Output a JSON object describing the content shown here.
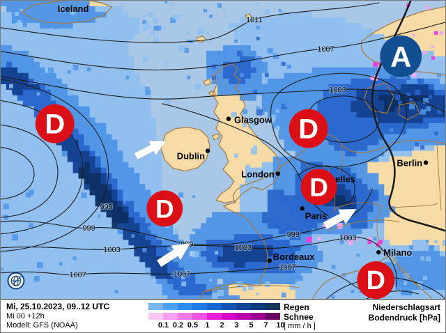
{
  "map": {
    "palette": {
      "sea": "#a9c8e8",
      "land": "#f6dba6",
      "coast": "#a87a3e",
      "isobar": "#1c1c1c",
      "precip_light": "#8ebff0",
      "precip_med": "#4f95e6",
      "precip_dark": "#2a66cc",
      "precip_navy": "#14418f",
      "precip_deep": "#0d2f63",
      "snow_light": "#fba4ef",
      "snow_med": "#ee3fdd",
      "low_red": "#dd0f16",
      "high_blue": "#124f91",
      "arrow": "#ffffff"
    },
    "region_label": {
      "label": "Iceland"
    },
    "cities": [
      {
        "label": "Glasgow"
      },
      {
        "label": "Dublin"
      },
      {
        "label": "London"
      },
      {
        "label": "Bruxelles"
      },
      {
        "label": "Paris"
      },
      {
        "label": "Berlin"
      },
      {
        "label": "Bordeaux"
      },
      {
        "label": "Milano"
      }
    ],
    "isobar_labels": [
      {
        "v": "1011"
      },
      {
        "v": "1007"
      },
      {
        "v": "1003"
      },
      {
        "v": "995"
      },
      {
        "v": "999"
      },
      {
        "v": "999"
      },
      {
        "v": "1003"
      },
      {
        "v": "1003"
      },
      {
        "v": "999"
      },
      {
        "v": "1003"
      },
      {
        "v": "1007"
      },
      {
        "v": "1007"
      },
      {
        "v": "1007"
      }
    ],
    "pressure_centers": [
      {
        "kind": "low",
        "letter": "D"
      },
      {
        "kind": "low",
        "letter": "D"
      },
      {
        "kind": "low",
        "letter": "D"
      },
      {
        "kind": "low",
        "letter": "D"
      },
      {
        "kind": "low",
        "letter": "D"
      },
      {
        "kind": "high",
        "letter": "A"
      }
    ]
  },
  "legend": {
    "date_line": "Mi, 25.10.2023, 09..12 UTC",
    "run_line": "Mi 00 +12h",
    "model_line": "Modell: GFS (NOAA)",
    "rain_label": "Regen",
    "snow_label": "Schnee",
    "unit_label": "[ mm / h ]",
    "type_label": "Niederschlagsart",
    "pressure_label": "Bodendruck [hPa]",
    "ticks": [
      "0.1",
      "0.2",
      "0.5",
      "1",
      "2",
      "3",
      "5",
      "7",
      "10"
    ],
    "rain_colors": [
      "#74b6f7",
      "#4ba1f5",
      "#2f8df2",
      "#1e7ae9",
      "#1767d4",
      "#1254b4",
      "#0d4496",
      "#0b3a7f",
      "#16355c"
    ],
    "snow_colors": [
      {
        "c": "#fcc7f5",
        "p": ""
      },
      {
        "c": "#fa9ff0",
        "p": ""
      },
      {
        "c": "#f77ae9",
        "p": "dots"
      },
      {
        "c": "#f254e2",
        "p": "dots"
      },
      {
        "c": "#e91ed9",
        "p": ""
      },
      {
        "c": "#d400c8",
        "p": ""
      },
      {
        "c": "#b800ab",
        "p": "hatch"
      },
      {
        "c": "#9a0090",
        "p": ""
      },
      {
        "c": "#6b0063",
        "p": "dots"
      }
    ]
  }
}
